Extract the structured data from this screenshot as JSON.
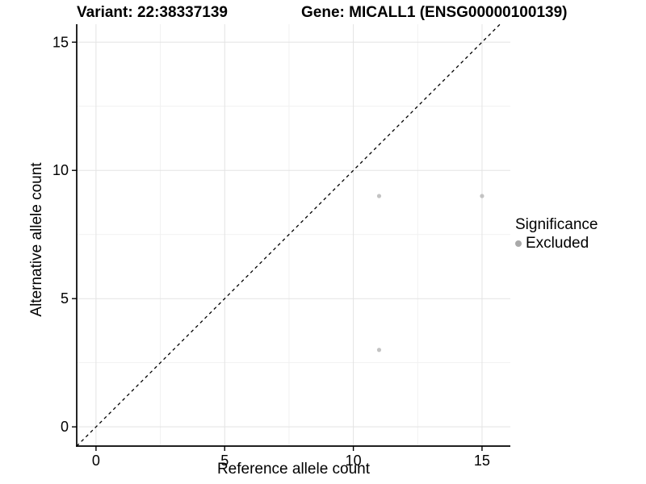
{
  "titles": {
    "variant": "Variant: 22:38337139",
    "gene": "Gene: MICALL1 (ENSG00000100139)"
  },
  "legend": {
    "title": "Significance",
    "position": "right",
    "items": [
      {
        "label": "Excluded",
        "swatch_color": "#a9a9a9"
      }
    ]
  },
  "colors": {
    "background": "#ffffff",
    "axis": "#000000",
    "text": "#000000",
    "grid_major": "#e3e3e3",
    "grid_minor": "#f1f1f1"
  },
  "chart_data": {
    "type": "scatter",
    "title": "Variant: 22:38337139 — Gene: MICALL1 (ENSG00000100139)",
    "xlabel": "Reference allele count",
    "ylabel": "Alternative allele count",
    "xlim": [
      -0.75,
      16.1
    ],
    "ylim": [
      -0.75,
      15.7
    ],
    "xticks": [
      0,
      5,
      10,
      15
    ],
    "yticks": [
      0,
      5,
      10,
      15
    ],
    "x_minor": [
      2.5,
      7.5,
      12.5
    ],
    "y_minor": [
      2.5,
      7.5,
      12.5
    ],
    "grid": true,
    "legend_position": "right",
    "series": [
      {
        "name": "Excluded",
        "color": "#c3c3c3",
        "points": [
          {
            "x": 11,
            "y": 9
          },
          {
            "x": 15,
            "y": 9
          },
          {
            "x": 11,
            "y": 3
          }
        ]
      }
    ],
    "reference_line": {
      "type": "identity",
      "slope": 1,
      "intercept": 0,
      "style": "dashed",
      "color": "#000000"
    }
  }
}
